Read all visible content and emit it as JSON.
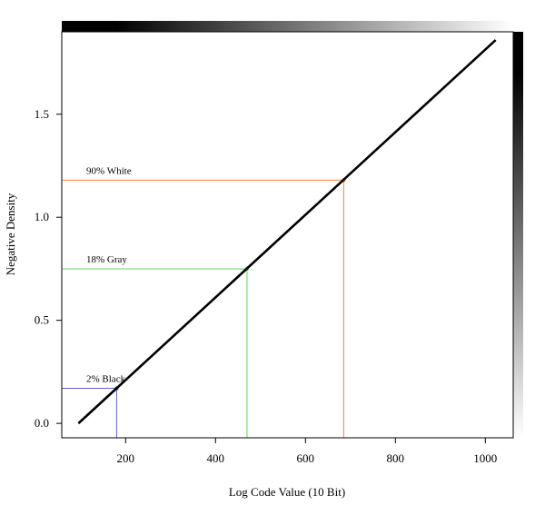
{
  "chart_data": {
    "type": "line",
    "xlabel": "Log Code Value (10 Bit)",
    "ylabel": "Negative Density",
    "xlim": [
      58,
      1062
    ],
    "ylim": [
      -0.07,
      1.9
    ],
    "x_ticks": [
      200,
      400,
      600,
      800,
      1000
    ],
    "y_ticks": [
      0.0,
      0.5,
      1.0,
      1.5
    ],
    "x_tick_labels": [
      "200",
      "400",
      "600",
      "800",
      "1000"
    ],
    "y_tick_labels": [
      "0.0",
      "0.5",
      "1.0",
      "1.5"
    ],
    "grid": false,
    "series": [
      {
        "x": [
          95,
          1023
        ],
        "y": [
          0.0,
          1.86
        ],
        "color": "#000000"
      }
    ],
    "annotations": [
      {
        "label": "90% White",
        "x": 685,
        "y": 1.18,
        "color": "#ff7f3f"
      },
      {
        "label": "18% Gray",
        "x": 470,
        "y": 0.75,
        "color": "#5fd35f"
      },
      {
        "label": "2% Black",
        "x": 180,
        "y": 0.17,
        "color": "#5f5fdf"
      }
    ],
    "gradient_bars": {
      "top": "black-to-white",
      "right": "black-to-white"
    }
  }
}
